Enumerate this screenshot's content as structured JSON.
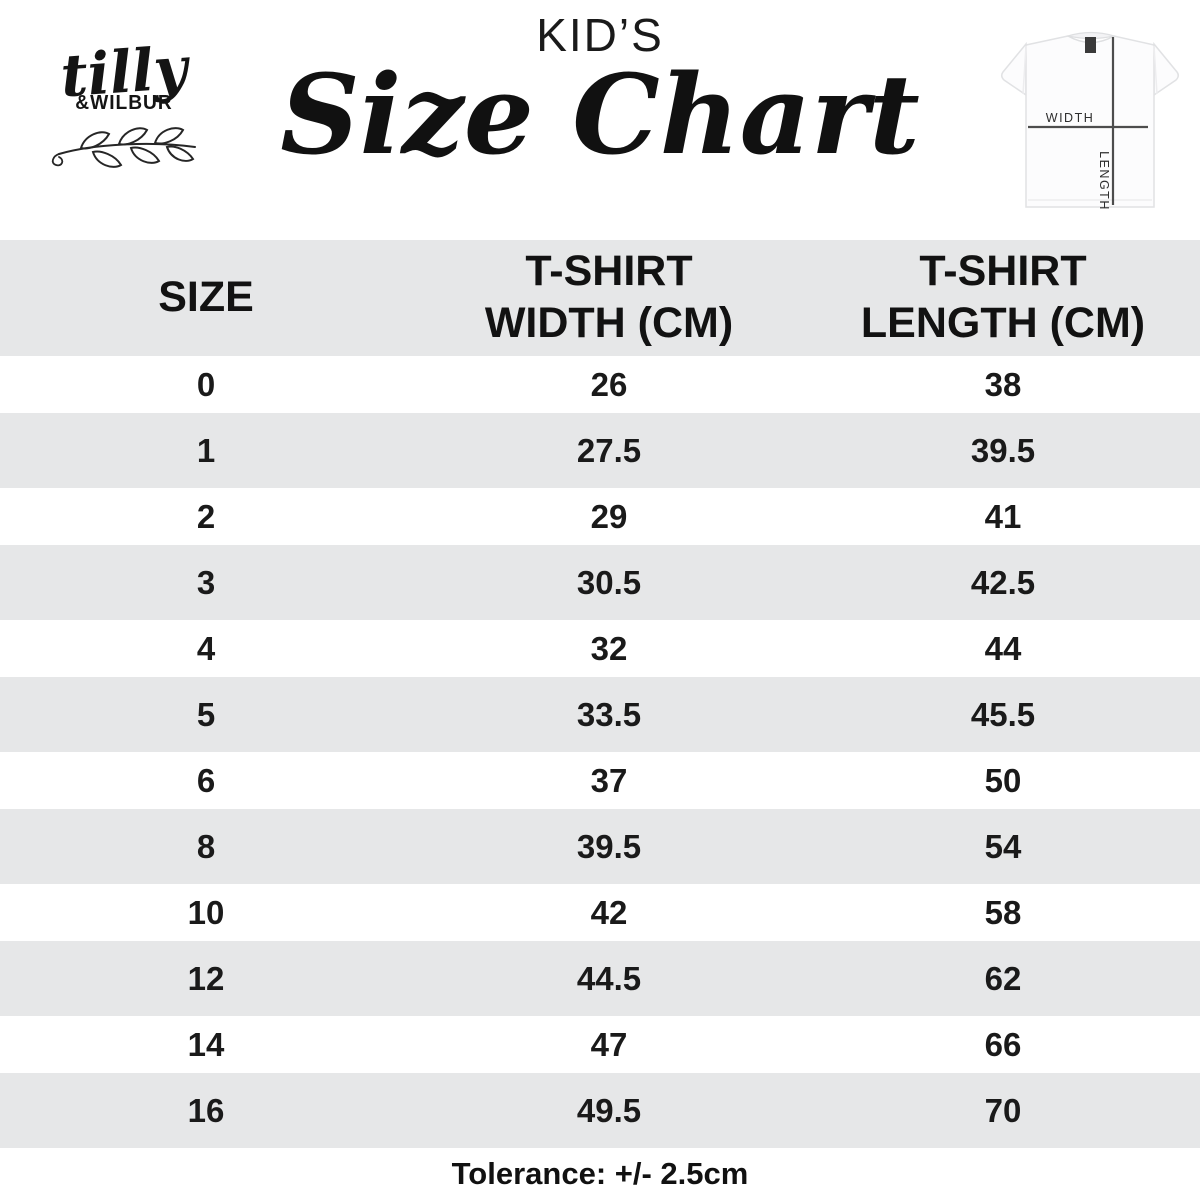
{
  "brand": {
    "script": "tilly",
    "caps": "&WILBUR"
  },
  "title": {
    "kicker": "KID’S",
    "main": "Size Chart"
  },
  "shirt_diagram": {
    "width_label": "WIDTH",
    "length_label": "LENGTH"
  },
  "table": {
    "header": {
      "size": "SIZE",
      "width": {
        "line1": "T-SHIRT",
        "line2": "WIDTH (CM)"
      },
      "length": {
        "line1": "T-SHIRT",
        "line2": "LENGTH (CM)"
      }
    },
    "rows": [
      {
        "size": "0",
        "width": "26",
        "length": "38"
      },
      {
        "size": "1",
        "width": "27.5",
        "length": "39.5"
      },
      {
        "size": "2",
        "width": "29",
        "length": "41"
      },
      {
        "size": "3",
        "width": "30.5",
        "length": "42.5"
      },
      {
        "size": "4",
        "width": "32",
        "length": "44"
      },
      {
        "size": "5",
        "width": "33.5",
        "length": "45.5"
      },
      {
        "size": "6",
        "width": "37",
        "length": "50"
      },
      {
        "size": "8",
        "width": "39.5",
        "length": "54"
      },
      {
        "size": "10",
        "width": "42",
        "length": "58"
      },
      {
        "size": "12",
        "width": "44.5",
        "length": "62"
      },
      {
        "size": "14",
        "width": "47",
        "length": "66"
      },
      {
        "size": "16",
        "width": "49.5",
        "length": "70"
      }
    ]
  },
  "footer": {
    "tolerance": "Tolerance: +/- 2.5cm"
  },
  "colors": {
    "stripe": "#e6e7e8",
    "text": "#141414",
    "measure_line": "#4d4d4d"
  },
  "chart_data": {
    "type": "table",
    "title": "KID’S Size Chart",
    "columns": [
      "SIZE",
      "T-SHIRT WIDTH (CM)",
      "T-SHIRT LENGTH (CM)"
    ],
    "rows": [
      [
        0,
        26,
        38
      ],
      [
        1,
        27.5,
        39.5
      ],
      [
        2,
        29,
        41
      ],
      [
        3,
        30.5,
        42.5
      ],
      [
        4,
        32,
        44
      ],
      [
        5,
        33.5,
        45.5
      ],
      [
        6,
        37,
        50
      ],
      [
        8,
        39.5,
        54
      ],
      [
        10,
        42,
        58
      ],
      [
        12,
        44.5,
        62
      ],
      [
        14,
        47,
        66
      ],
      [
        16,
        49.5,
        70
      ]
    ],
    "note": "Tolerance: +/- 2.5cm"
  }
}
